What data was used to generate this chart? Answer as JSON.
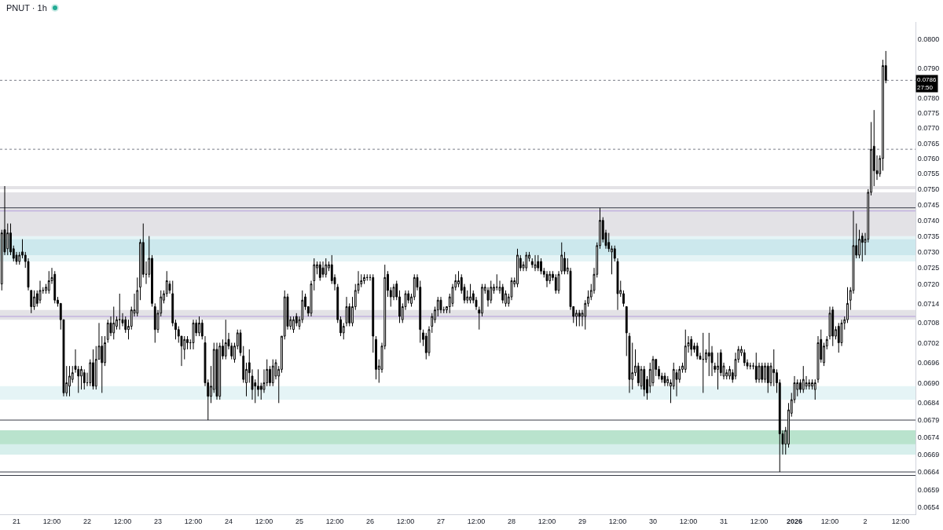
{
  "chart_data": {
    "type": "candlestick",
    "title": "PNUT · 1h",
    "color": "#000000",
    "log": true,
    "xlim": [
      "2025-12-20T18:24",
      "2026-01-02T17:04"
    ],
    "xticks": [
      {
        "value": "2025-12-21",
        "label": "21"
      },
      {
        "value": "2025-12-21T12:00",
        "label": "12:00"
      },
      {
        "value": "2025-12-22",
        "label": "22"
      },
      {
        "value": "2025-12-22T12:00",
        "label": "12:00"
      },
      {
        "value": "2025-12-23",
        "label": "23"
      },
      {
        "value": "2025-12-23T12:00",
        "label": "12:00"
      },
      {
        "value": "2025-12-24",
        "label": "24"
      },
      {
        "value": "2025-12-24T12:00",
        "label": "12:00"
      },
      {
        "value": "2025-12-25",
        "label": "25"
      },
      {
        "value": "2025-12-25T12:00",
        "label": "12:00"
      },
      {
        "value": "2025-12-26",
        "label": "26"
      },
      {
        "value": "2025-12-26T12:00",
        "label": "12:00"
      },
      {
        "value": "2025-12-27",
        "label": "27"
      },
      {
        "value": "2025-12-27T12:00",
        "label": "12:00"
      },
      {
        "value": "2025-12-28",
        "label": "28"
      },
      {
        "value": "2025-12-28T12:00",
        "label": "12:00"
      },
      {
        "value": "2025-12-29",
        "label": "29"
      },
      {
        "value": "2025-12-29T12:00",
        "label": "12:00"
      },
      {
        "value": "2025-12-30",
        "label": "30"
      },
      {
        "value": "2025-12-30T12:00",
        "label": "12:00"
      },
      {
        "value": "2025-12-31",
        "label": "31"
      },
      {
        "value": "2025-12-31T12:00",
        "label": "12:00"
      },
      {
        "value": "2026-01-01",
        "label": "2026"
      },
      {
        "value": "2026-01-01T12:00",
        "label": "12:00"
      },
      {
        "value": "2026-01-02",
        "label": "2"
      },
      {
        "value": "2026-01-02T12:00",
        "label": "12:00"
      }
    ],
    "ylim": [
      0.0652,
      0.0806
    ],
    "yticks": [
      {
        "value": 0.08,
        "label": "0.0800"
      },
      {
        "value": 0.079,
        "label": "0.0790"
      },
      {
        "value": 0.078,
        "label": "0.0780"
      },
      0.0775,
      {
        "value": 0.077,
        "label": "0.0770"
      },
      0.0765,
      {
        "value": 0.076,
        "label": "0.0760"
      },
      0.0755,
      {
        "value": 0.075,
        "label": "0.0750"
      },
      0.0745,
      {
        "value": 0.074,
        "label": "0.0740"
      },
      0.0735,
      {
        "value": 0.073,
        "label": "0.0730"
      },
      0.0725,
      {
        "value": 0.072,
        "label": "0.0720"
      },
      0.0714,
      0.0708,
      0.0702,
      0.0696,
      {
        "value": 0.069,
        "label": "0.0690"
      },
      0.0684,
      0.0679,
      0.0674,
      0.0669,
      0.0664,
      0.0659,
      0.0654
    ],
    "bands": [
      {
        "axis": "y",
        "from": 0.0727,
        "to": 0.0735,
        "color": "#dff1f4"
      },
      {
        "axis": "y",
        "from": 0.0729,
        "to": 0.0734,
        "color": "#c5e5eb"
      },
      {
        "axis": "y",
        "from": 0.0685,
        "to": 0.0689,
        "color": "#dff1f4"
      },
      {
        "axis": "y",
        "from": 0.0669,
        "to": 0.0676,
        "color": "#a8dcc0"
      },
      {
        "axis": "y",
        "from": 0.0669,
        "to": 0.0672,
        "color": "#dff1f4"
      },
      {
        "axis": "y",
        "from": 0.0735,
        "to": 0.0749,
        "color": "#dcdbe0"
      },
      {
        "axis": "y",
        "from": 0.075,
        "to": 0.0751,
        "color": "#dcdbe0"
      },
      {
        "axis": "y",
        "from": 0.0709,
        "to": 0.0712,
        "color": "#dcdbe0"
      }
    ],
    "ref_lines": [
      {
        "axis": "y",
        "value": 0.0786,
        "label": "0.0786\n27:50",
        "line_style": "dotted",
        "color": "#787b86"
      },
      {
        "axis": "y",
        "value": 0.0763,
        "line_style": "dotted",
        "color": "#787b86"
      },
      {
        "axis": "y",
        "value": 0.0744,
        "color": "#363a45"
      },
      {
        "axis": "y",
        "value": 0.0743,
        "color": "#b39ddb"
      },
      {
        "axis": "y",
        "value": 0.071,
        "color": "#b39ddb"
      },
      {
        "axis": "y",
        "value": 0.0679,
        "color": "#363a45"
      },
      {
        "axis": "y",
        "value": 0.0664,
        "color": "#363a45"
      },
      {
        "axis": "y",
        "value": 0.0663,
        "color": "#363a45"
      }
    ],
    "x": [
      "2025-12-20T19:00",
      "2025-12-20T20:00",
      "2025-12-20T21:00",
      "2025-12-20T22:00",
      "2025-12-20T23:00",
      "2025-12-21T00:00",
      "2025-12-21T01:00",
      "2025-12-21T02:00",
      "2025-12-21T03:00",
      "2025-12-21T04:00",
      "2025-12-21T05:00",
      "2025-12-21T06:00",
      "2025-12-21T07:00",
      "2025-12-21T08:00",
      "2025-12-21T09:00",
      "2025-12-21T10:00",
      "2025-12-21T11:00",
      "2025-12-21T12:00",
      "2025-12-21T13:00",
      "2025-12-21T14:00",
      "2025-12-21T15:00",
      "2025-12-21T16:00",
      "2025-12-21T17:00",
      "2025-12-21T18:00",
      "2025-12-21T19:00",
      "2025-12-21T20:00",
      "2025-12-21T21:00",
      "2025-12-21T22:00",
      "2025-12-21T23:00",
      "2025-12-22T00:00",
      "2025-12-22T01:00",
      "2025-12-22T02:00",
      "2025-12-22T03:00",
      "2025-12-22T04:00",
      "2025-12-22T05:00",
      "2025-12-22T06:00",
      "2025-12-22T07:00",
      "2025-12-22T08:00",
      "2025-12-22T09:00",
      "2025-12-22T10:00",
      "2025-12-22T11:00",
      "2025-12-22T12:00",
      "2025-12-22T13:00",
      "2025-12-22T14:00",
      "2025-12-22T15:00",
      "2025-12-22T16:00",
      "2025-12-22T17:00",
      "2025-12-22T18:00",
      "2025-12-22T19:00",
      "2025-12-22T20:00",
      "2025-12-22T21:00",
      "2025-12-22T22:00",
      "2025-12-22T23:00",
      "2025-12-23T00:00",
      "2025-12-23T01:00",
      "2025-12-23T02:00",
      "2025-12-23T03:00",
      "2025-12-23T04:00",
      "2025-12-23T05:00",
      "2025-12-23T06:00",
      "2025-12-23T07:00",
      "2025-12-23T08:00",
      "2025-12-23T09:00",
      "2025-12-23T10:00",
      "2025-12-23T11:00",
      "2025-12-23T12:00",
      "2025-12-23T13:00",
      "2025-12-23T14:00",
      "2025-12-23T15:00",
      "2025-12-23T16:00",
      "2025-12-23T17:00",
      "2025-12-23T18:00",
      "2025-12-23T19:00",
      "2025-12-23T20:00",
      "2025-12-23T21:00",
      "2025-12-23T22:00",
      "2025-12-23T23:00",
      "2025-12-24T00:00",
      "2025-12-24T01:00",
      "2025-12-24T02:00",
      "2025-12-24T03:00",
      "2025-12-24T04:00",
      "2025-12-24T05:00",
      "2025-12-24T06:00",
      "2025-12-24T07:00",
      "2025-12-24T08:00",
      "2025-12-24T09:00",
      "2025-12-24T10:00",
      "2025-12-24T11:00",
      "2025-12-24T12:00",
      "2025-12-24T13:00",
      "2025-12-24T14:00",
      "2025-12-24T15:00",
      "2025-12-24T16:00",
      "2025-12-24T17:00",
      "2025-12-24T18:00",
      "2025-12-24T19:00",
      "2025-12-24T20:00",
      "2025-12-24T21:00",
      "2025-12-24T22:00",
      "2025-12-24T23:00",
      "2025-12-25T00:00",
      "2025-12-25T01:00",
      "2025-12-25T02:00",
      "2025-12-25T03:00",
      "2025-12-25T04:00",
      "2025-12-25T05:00",
      "2025-12-25T06:00",
      "2025-12-25T07:00",
      "2025-12-25T08:00",
      "2025-12-25T09:00",
      "2025-12-25T10:00",
      "2025-12-25T11:00",
      "2025-12-25T12:00",
      "2025-12-25T13:00",
      "2025-12-25T14:00",
      "2025-12-25T15:00",
      "2025-12-25T16:00",
      "2025-12-25T17:00",
      "2025-12-25T18:00",
      "2025-12-25T19:00",
      "2025-12-25T20:00",
      "2025-12-25T21:00",
      "2025-12-25T22:00",
      "2025-12-25T23:00",
      "2025-12-26T00:00",
      "2025-12-26T01:00",
      "2025-12-26T02:00",
      "2025-12-26T03:00",
      "2025-12-26T04:00",
      "2025-12-26T05:00",
      "2025-12-26T06:00",
      "2025-12-26T07:00",
      "2025-12-26T08:00",
      "2025-12-26T09:00",
      "2025-12-26T10:00",
      "2025-12-26T11:00",
      "2025-12-26T12:00",
      "2025-12-26T13:00",
      "2025-12-26T14:00",
      "2025-12-26T15:00",
      "2025-12-26T16:00",
      "2025-12-26T17:00",
      "2025-12-26T18:00",
      "2025-12-26T19:00",
      "2025-12-26T20:00",
      "2025-12-26T21:00",
      "2025-12-26T22:00",
      "2025-12-26T23:00",
      "2025-12-27T00:00",
      "2025-12-27T01:00",
      "2025-12-27T02:00",
      "2025-12-27T03:00",
      "2025-12-27T04:00",
      "2025-12-27T05:00",
      "2025-12-27T06:00",
      "2025-12-27T07:00",
      "2025-12-27T08:00",
      "2025-12-27T09:00",
      "2025-12-27T10:00",
      "2025-12-27T11:00",
      "2025-12-27T12:00",
      "2025-12-27T13:00",
      "2025-12-27T14:00",
      "2025-12-27T15:00",
      "2025-12-27T16:00",
      "2025-12-27T17:00",
      "2025-12-27T18:00",
      "2025-12-27T19:00",
      "2025-12-27T20:00",
      "2025-12-27T21:00",
      "2025-12-27T22:00",
      "2025-12-27T23:00",
      "2025-12-28T00:00",
      "2025-12-28T01:00",
      "2025-12-28T02:00",
      "2025-12-28T03:00",
      "2025-12-28T04:00",
      "2025-12-28T05:00",
      "2025-12-28T06:00",
      "2025-12-28T07:00",
      "2025-12-28T08:00",
      "2025-12-28T09:00",
      "2025-12-28T10:00",
      "2025-12-28T11:00",
      "2025-12-28T12:00",
      "2025-12-28T13:00",
      "2025-12-28T14:00",
      "2025-12-28T15:00",
      "2025-12-28T16:00",
      "2025-12-28T17:00",
      "2025-12-28T18:00",
      "2025-12-28T19:00",
      "2025-12-28T20:00",
      "2025-12-28T21:00",
      "2025-12-28T22:00",
      "2025-12-28T23:00",
      "2025-12-29T00:00",
      "2025-12-29T01:00",
      "2025-12-29T02:00",
      "2025-12-29T03:00",
      "2025-12-29T04:00",
      "2025-12-29T05:00",
      "2025-12-29T06:00",
      "2025-12-29T07:00",
      "2025-12-29T08:00",
      "2025-12-29T09:00",
      "2025-12-29T10:00",
      "2025-12-29T11:00",
      "2025-12-29T12:00",
      "2025-12-29T13:00",
      "2025-12-29T14:00",
      "2025-12-29T15:00",
      "2025-12-29T16:00",
      "2025-12-29T17:00",
      "2025-12-29T18:00",
      "2025-12-29T19:00",
      "2025-12-29T20:00",
      "2025-12-29T21:00",
      "2025-12-29T22:00",
      "2025-12-29T23:00",
      "2025-12-30T00:00",
      "2025-12-30T01:00",
      "2025-12-30T02:00",
      "2025-12-30T03:00",
      "2025-12-30T04:00",
      "2025-12-30T05:00",
      "2025-12-30T06:00",
      "2025-12-30T07:00",
      "2025-12-30T08:00",
      "2025-12-30T09:00",
      "2025-12-30T10:00",
      "2025-12-30T11:00",
      "2025-12-30T12:00",
      "2025-12-30T13:00",
      "2025-12-30T14:00",
      "2025-12-30T15:00",
      "2025-12-30T16:00",
      "2025-12-30T17:00",
      "2025-12-30T18:00",
      "2025-12-30T19:00",
      "2025-12-30T20:00",
      "2025-12-30T21:00",
      "2025-12-30T22:00",
      "2025-12-30T23:00",
      "2025-12-31T00:00",
      "2025-12-31T01:00",
      "2025-12-31T02:00",
      "2025-12-31T03:00",
      "2025-12-31T04:00",
      "2025-12-31T05:00",
      "2025-12-31T06:00",
      "2025-12-31T07:00",
      "2025-12-31T08:00",
      "2025-12-31T09:00",
      "2025-12-31T10:00",
      "2025-12-31T11:00",
      "2025-12-31T12:00",
      "2025-12-31T13:00",
      "2025-12-31T14:00",
      "2025-12-31T15:00",
      "2025-12-31T16:00",
      "2025-12-31T17:00",
      "2025-12-31T18:00",
      "2025-12-31T19:00",
      "2025-12-31T20:00",
      "2025-12-31T21:00",
      "2025-12-31T22:00",
      "2025-12-31T23:00",
      "2026-01-01T00:00",
      "2026-01-01T01:00",
      "2026-01-01T02:00",
      "2026-01-01T03:00",
      "2026-01-01T04:00",
      "2026-01-01T05:00",
      "2026-01-01T06:00",
      "2026-01-01T07:00",
      "2026-01-01T08:00",
      "2026-01-01T09:00",
      "2026-01-01T10:00",
      "2026-01-01T11:00",
      "2026-01-01T12:00",
      "2026-01-01T13:00",
      "2026-01-01T14:00",
      "2026-01-01T15:00",
      "2026-01-01T16:00",
      "2026-01-01T17:00",
      "2026-01-01T18:00",
      "2026-01-01T19:00",
      "2026-01-01T20:00",
      "2026-01-01T21:00",
      "2026-01-01T22:00",
      "2026-01-01T23:00",
      "2026-01-02T00:00",
      "2026-01-02T01:00",
      "2026-01-02T02:00",
      "2026-01-02T03:00",
      "2026-01-02T04:00",
      "2026-01-02T05:00",
      "2026-01-02T06:00",
      "2026-01-02T07:00"
    ],
    "ohlc": [
      [
        0.072,
        0.0737,
        0.0718,
        0.0736
      ],
      [
        0.0737,
        0.0751,
        0.0729,
        0.073
      ],
      [
        0.0731,
        0.0739,
        0.0729,
        0.0736
      ],
      [
        0.0736,
        0.0739,
        0.0729,
        0.073
      ],
      [
        0.0731,
        0.0732,
        0.0727,
        0.0728
      ],
      [
        0.0729,
        0.073,
        0.0726,
        0.0727
      ],
      [
        0.0727,
        0.073,
        0.0726,
        0.0729
      ],
      [
        0.073,
        0.0734,
        0.0728,
        0.0729
      ],
      [
        0.0729,
        0.073,
        0.0725,
        0.0727
      ],
      [
        0.0727,
        0.0728,
        0.0718,
        0.0719
      ],
      [
        0.0718,
        0.0718,
        0.0711,
        0.0713
      ],
      [
        0.0713,
        0.0718,
        0.0712,
        0.0716
      ],
      [
        0.0717,
        0.0718,
        0.0713,
        0.0714
      ],
      [
        0.0715,
        0.0721,
        0.0714,
        0.0718
      ],
      [
        0.0718,
        0.0719,
        0.0717,
        0.0718
      ],
      [
        0.0718,
        0.072,
        0.0717,
        0.0719
      ],
      [
        0.0718,
        0.0724,
        0.0717,
        0.0721
      ],
      [
        0.0721,
        0.0725,
        0.072,
        0.0722
      ],
      [
        0.0723,
        0.0724,
        0.0714,
        0.0715
      ],
      [
        0.0715,
        0.0716,
        0.0713,
        0.0714
      ],
      [
        0.0714,
        0.0714,
        0.0706,
        0.0709
      ],
      [
        0.0709,
        0.0709,
        0.0686,
        0.0687
      ],
      [
        0.0687,
        0.0695,
        0.0686,
        0.069
      ],
      [
        0.0689,
        0.0695,
        0.0686,
        0.0692
      ],
      [
        0.0691,
        0.0695,
        0.069,
        0.0693
      ],
      [
        0.0695,
        0.07,
        0.0693,
        0.0694
      ],
      [
        0.0694,
        0.0695,
        0.0687,
        0.0692
      ],
      [
        0.0692,
        0.0695,
        0.0688,
        0.0694
      ],
      [
        0.0693,
        0.0694,
        0.0688,
        0.069
      ],
      [
        0.069,
        0.0693,
        0.0689,
        0.069
      ],
      [
        0.069,
        0.0697,
        0.0689,
        0.0696
      ],
      [
        0.0696,
        0.07,
        0.0688,
        0.0689
      ],
      [
        0.0689,
        0.0701,
        0.0688,
        0.0697
      ],
      [
        0.0697,
        0.0708,
        0.0697,
        0.0701
      ],
      [
        0.0701,
        0.0704,
        0.0687,
        0.0696
      ],
      [
        0.0696,
        0.0704,
        0.0695,
        0.0702
      ],
      [
        0.0703,
        0.0709,
        0.0702,
        0.0708
      ],
      [
        0.0708,
        0.071,
        0.0704,
        0.0705
      ],
      [
        0.0705,
        0.0713,
        0.0703,
        0.0708
      ],
      [
        0.0707,
        0.071,
        0.0706,
        0.0709
      ],
      [
        0.0709,
        0.0717,
        0.0706,
        0.0709
      ],
      [
        0.0709,
        0.0711,
        0.0707,
        0.0708
      ],
      [
        0.0709,
        0.071,
        0.0705,
        0.0706
      ],
      [
        0.0706,
        0.0709,
        0.0703,
        0.0707
      ],
      [
        0.0707,
        0.0713,
        0.0706,
        0.0712
      ],
      [
        0.0711,
        0.0717,
        0.071,
        0.0712
      ],
      [
        0.0711,
        0.0722,
        0.071,
        0.0718
      ],
      [
        0.0719,
        0.0734,
        0.0715,
        0.0733
      ],
      [
        0.0733,
        0.0739,
        0.0722,
        0.0723
      ],
      [
        0.0723,
        0.0727,
        0.072,
        0.0723
      ],
      [
        0.0723,
        0.0735,
        0.0722,
        0.0728
      ],
      [
        0.0728,
        0.0729,
        0.0713,
        0.0714
      ],
      [
        0.0713,
        0.0714,
        0.0702,
        0.0706
      ],
      [
        0.0706,
        0.0712,
        0.0705,
        0.0711
      ],
      [
        0.0711,
        0.0718,
        0.071,
        0.0716
      ],
      [
        0.0715,
        0.0718,
        0.0714,
        0.0717
      ],
      [
        0.0717,
        0.0724,
        0.0716,
        0.0721
      ],
      [
        0.072,
        0.0721,
        0.0717,
        0.0718
      ],
      [
        0.0717,
        0.0721,
        0.0707,
        0.0708
      ],
      [
        0.0708,
        0.0709,
        0.0703,
        0.0706
      ],
      [
        0.0706,
        0.0707,
        0.0702,
        0.0704
      ],
      [
        0.0704,
        0.0704,
        0.0695,
        0.0701
      ],
      [
        0.07,
        0.0704,
        0.0697,
        0.0703
      ],
      [
        0.0703,
        0.0704,
        0.07,
        0.0702
      ],
      [
        0.0702,
        0.0703,
        0.07,
        0.0702
      ],
      [
        0.0702,
        0.0709,
        0.07,
        0.0708
      ],
      [
        0.0708,
        0.0709,
        0.0704,
        0.0705
      ],
      [
        0.0705,
        0.071,
        0.0704,
        0.0708
      ],
      [
        0.0708,
        0.0709,
        0.0703,
        0.0704
      ],
      [
        0.0702,
        0.0704,
        0.0689,
        0.069
      ],
      [
        0.069,
        0.0691,
        0.0679,
        0.0686
      ],
      [
        0.0686,
        0.0695,
        0.0684,
        0.0689
      ],
      [
        0.0688,
        0.0702,
        0.0687,
        0.07
      ],
      [
        0.07,
        0.0702,
        0.0685,
        0.0686
      ],
      [
        0.0686,
        0.0702,
        0.0685,
        0.0701
      ],
      [
        0.0701,
        0.0703,
        0.0697,
        0.0698
      ],
      [
        0.0698,
        0.0709,
        0.0697,
        0.0702
      ],
      [
        0.0703,
        0.0705,
        0.07,
        0.0701
      ],
      [
        0.0701,
        0.0702,
        0.0697,
        0.0698
      ],
      [
        0.0697,
        0.0702,
        0.0696,
        0.0701
      ],
      [
        0.0701,
        0.0706,
        0.07,
        0.0705
      ],
      [
        0.0705,
        0.0706,
        0.0698,
        0.0699
      ],
      [
        0.0698,
        0.0701,
        0.069,
        0.0691
      ],
      [
        0.069,
        0.0696,
        0.0686,
        0.0694
      ],
      [
        0.0696,
        0.07,
        0.069,
        0.0693
      ],
      [
        0.0692,
        0.0694,
        0.0685,
        0.0688
      ],
      [
        0.069,
        0.0691,
        0.0684,
        0.0689
      ],
      [
        0.0689,
        0.0694,
        0.0686,
        0.0688
      ],
      [
        0.0689,
        0.069,
        0.0685,
        0.0688
      ],
      [
        0.0688,
        0.0694,
        0.0687,
        0.069
      ],
      [
        0.069,
        0.0697,
        0.0689,
        0.0694
      ],
      [
        0.0694,
        0.0695,
        0.0689,
        0.069
      ],
      [
        0.069,
        0.0697,
        0.0689,
        0.0695
      ],
      [
        0.0692,
        0.0697,
        0.0691,
        0.0696
      ],
      [
        0.0692,
        0.0695,
        0.0684,
        0.0694
      ],
      [
        0.0694,
        0.0704,
        0.0693,
        0.0704
      ],
      [
        0.0704,
        0.0718,
        0.0703,
        0.0716
      ],
      [
        0.0716,
        0.0717,
        0.0706,
        0.0707
      ],
      [
        0.0707,
        0.071,
        0.0706,
        0.0709
      ],
      [
        0.0706,
        0.071,
        0.0705,
        0.0709
      ],
      [
        0.071,
        0.0711,
        0.0707,
        0.0708
      ],
      [
        0.0707,
        0.071,
        0.0706,
        0.0709
      ],
      [
        0.0709,
        0.0718,
        0.0708,
        0.0715
      ],
      [
        0.0716,
        0.0717,
        0.0712,
        0.0713
      ],
      [
        0.0713,
        0.0713,
        0.071,
        0.0711
      ],
      [
        0.0711,
        0.0721,
        0.071,
        0.072
      ],
      [
        0.0721,
        0.0728,
        0.0718,
        0.0726
      ],
      [
        0.0725,
        0.0727,
        0.0723,
        0.0726
      ],
      [
        0.0726,
        0.0727,
        0.0721,
        0.0722
      ],
      [
        0.0725,
        0.0727,
        0.0722,
        0.0723
      ],
      [
        0.0723,
        0.0728,
        0.0722,
        0.0726
      ],
      [
        0.0725,
        0.0727,
        0.0724,
        0.0726
      ],
      [
        0.0726,
        0.0729,
        0.072,
        0.0721
      ],
      [
        0.0722,
        0.0723,
        0.0718,
        0.072
      ],
      [
        0.0719,
        0.072,
        0.0708,
        0.0709
      ],
      [
        0.0709,
        0.071,
        0.0704,
        0.0705
      ],
      [
        0.0705,
        0.0708,
        0.0703,
        0.0707
      ],
      [
        0.0708,
        0.0716,
        0.0707,
        0.0713
      ],
      [
        0.0713,
        0.0714,
        0.0707,
        0.0708
      ],
      [
        0.0708,
        0.0716,
        0.0707,
        0.0713
      ],
      [
        0.0713,
        0.072,
        0.0712,
        0.0718
      ],
      [
        0.0718,
        0.0724,
        0.0717,
        0.072
      ],
      [
        0.072,
        0.0723,
        0.0719,
        0.0721
      ],
      [
        0.0721,
        0.0723,
        0.072,
        0.0722
      ],
      [
        0.0722,
        0.0723,
        0.0721,
        0.0722
      ],
      [
        0.0722,
        0.0723,
        0.0721,
        0.0722
      ],
      [
        0.0722,
        0.0723,
        0.0699,
        0.0704
      ],
      [
        0.0703,
        0.0704,
        0.0691,
        0.0694
      ],
      [
        0.0694,
        0.0697,
        0.069,
        0.0695
      ],
      [
        0.0694,
        0.0702,
        0.0693,
        0.0701
      ],
      [
        0.0701,
        0.0726,
        0.07,
        0.0722
      ],
      [
        0.0723,
        0.0724,
        0.0716,
        0.0718
      ],
      [
        0.0718,
        0.0719,
        0.0713,
        0.0716
      ],
      [
        0.0716,
        0.072,
        0.0715,
        0.0719
      ],
      [
        0.072,
        0.0721,
        0.0715,
        0.0716
      ],
      [
        0.0716,
        0.0718,
        0.0708,
        0.071
      ],
      [
        0.0709,
        0.0714,
        0.0708,
        0.0713
      ],
      [
        0.0713,
        0.0718,
        0.0712,
        0.0717
      ],
      [
        0.0717,
        0.0718,
        0.0714,
        0.0715
      ],
      [
        0.0714,
        0.0717,
        0.0713,
        0.0716
      ],
      [
        0.0716,
        0.0723,
        0.0715,
        0.0722
      ],
      [
        0.0722,
        0.0723,
        0.0718,
        0.0719
      ],
      [
        0.0719,
        0.0721,
        0.0702,
        0.0706
      ],
      [
        0.0705,
        0.0706,
        0.0701,
        0.0703
      ],
      [
        0.0704,
        0.0705,
        0.0697,
        0.0699
      ],
      [
        0.0699,
        0.0707,
        0.0698,
        0.0706
      ],
      [
        0.0707,
        0.0711,
        0.0705,
        0.071
      ],
      [
        0.0709,
        0.0713,
        0.0708,
        0.0712
      ],
      [
        0.0712,
        0.0716,
        0.071,
        0.0715
      ],
      [
        0.0715,
        0.0716,
        0.0711,
        0.0712
      ],
      [
        0.0712,
        0.0713,
        0.0711,
        0.0712
      ],
      [
        0.0712,
        0.0713,
        0.0711,
        0.0713
      ],
      [
        0.0713,
        0.0717,
        0.0711,
        0.0716
      ],
      [
        0.0714,
        0.072,
        0.0713,
        0.0719
      ],
      [
        0.0719,
        0.0723,
        0.0718,
        0.0721
      ],
      [
        0.072,
        0.0724,
        0.0719,
        0.0721
      ],
      [
        0.0722,
        0.0723,
        0.0717,
        0.0718
      ],
      [
        0.0719,
        0.072,
        0.0714,
        0.0715
      ],
      [
        0.0715,
        0.0718,
        0.0714,
        0.0716
      ],
      [
        0.0715,
        0.072,
        0.0714,
        0.0716
      ],
      [
        0.0717,
        0.0718,
        0.0714,
        0.0715
      ],
      [
        0.0715,
        0.0716,
        0.0712,
        0.0713
      ],
      [
        0.0712,
        0.0713,
        0.0706,
        0.0711
      ],
      [
        0.0711,
        0.072,
        0.071,
        0.0719
      ],
      [
        0.0718,
        0.072,
        0.0717,
        0.0719
      ],
      [
        0.0718,
        0.0719,
        0.0713,
        0.0715
      ],
      [
        0.0715,
        0.0721,
        0.0714,
        0.0719
      ],
      [
        0.0718,
        0.072,
        0.0717,
        0.0719
      ],
      [
        0.0719,
        0.0723,
        0.0718,
        0.0719
      ],
      [
        0.0718,
        0.0721,
        0.0717,
        0.0719
      ],
      [
        0.0719,
        0.072,
        0.0714,
        0.0715
      ],
      [
        0.0714,
        0.0718,
        0.0713,
        0.0717
      ],
      [
        0.0714,
        0.0717,
        0.0713,
        0.0716
      ],
      [
        0.0716,
        0.0722,
        0.0715,
        0.0721
      ],
      [
        0.072,
        0.0722,
        0.0719,
        0.0721
      ],
      [
        0.072,
        0.0731,
        0.0719,
        0.0729
      ],
      [
        0.0728,
        0.0729,
        0.0724,
        0.0725
      ],
      [
        0.0725,
        0.0727,
        0.0724,
        0.0726
      ],
      [
        0.0725,
        0.073,
        0.0724,
        0.0729
      ],
      [
        0.0728,
        0.073,
        0.0727,
        0.0729
      ],
      [
        0.0727,
        0.0728,
        0.0725,
        0.0726
      ],
      [
        0.0725,
        0.0729,
        0.0724,
        0.0726
      ],
      [
        0.0727,
        0.0729,
        0.0724,
        0.0725
      ],
      [
        0.0727,
        0.0728,
        0.0723,
        0.0724
      ],
      [
        0.0724,
        0.0725,
        0.0722,
        0.0723
      ],
      [
        0.0723,
        0.0724,
        0.0719,
        0.0721
      ],
      [
        0.0721,
        0.0724,
        0.072,
        0.0723
      ],
      [
        0.0723,
        0.0724,
        0.0721,
        0.0722
      ],
      [
        0.0722,
        0.0723,
        0.0717,
        0.0718
      ],
      [
        0.0718,
        0.0724,
        0.0717,
        0.0723
      ],
      [
        0.0724,
        0.0733,
        0.0723,
        0.0729
      ],
      [
        0.0728,
        0.073,
        0.0723,
        0.0724
      ],
      [
        0.0724,
        0.0728,
        0.0723,
        0.0725
      ],
      [
        0.0724,
        0.0725,
        0.0712,
        0.0713
      ],
      [
        0.0713,
        0.0713,
        0.0708,
        0.071
      ],
      [
        0.071,
        0.0712,
        0.0707,
        0.0711
      ],
      [
        0.0711,
        0.0712,
        0.0707,
        0.071
      ],
      [
        0.071,
        0.0712,
        0.0707,
        0.0711
      ],
      [
        0.071,
        0.0715,
        0.0706,
        0.0714
      ],
      [
        0.0714,
        0.0718,
        0.0713,
        0.0716
      ],
      [
        0.0716,
        0.072,
        0.0715,
        0.0718
      ],
      [
        0.0718,
        0.0725,
        0.0717,
        0.0723
      ],
      [
        0.0723,
        0.0733,
        0.0722,
        0.0732
      ],
      [
        0.0732,
        0.0744,
        0.0731,
        0.074
      ],
      [
        0.074,
        0.0741,
        0.0733,
        0.0734
      ],
      [
        0.0736,
        0.0737,
        0.0731,
        0.0732
      ],
      [
        0.0733,
        0.0736,
        0.073,
        0.0731
      ],
      [
        0.073,
        0.0732,
        0.0723,
        0.0731
      ],
      [
        0.0731,
        0.0732,
        0.0727,
        0.0728
      ],
      [
        0.0727,
        0.0728,
        0.0712,
        0.0717
      ],
      [
        0.0717,
        0.0721,
        0.0716,
        0.0718
      ],
      [
        0.0717,
        0.0718,
        0.0713,
        0.0714
      ],
      [
        0.0713,
        0.0713,
        0.0698,
        0.0705
      ],
      [
        0.0704,
        0.0705,
        0.0687,
        0.0691
      ],
      [
        0.0691,
        0.0702,
        0.0688,
        0.0693
      ],
      [
        0.0693,
        0.07,
        0.0692,
        0.0695
      ],
      [
        0.0695,
        0.0696,
        0.0689,
        0.069
      ],
      [
        0.0689,
        0.0695,
        0.0688,
        0.0694
      ],
      [
        0.0694,
        0.0695,
        0.0686,
        0.0688
      ],
      [
        0.0691,
        0.0692,
        0.0685,
        0.0687
      ],
      [
        0.0689,
        0.0696,
        0.0687,
        0.0694
      ],
      [
        0.069,
        0.0698,
        0.0689,
        0.0697
      ],
      [
        0.0697,
        0.0697,
        0.0692,
        0.0694
      ],
      [
        0.0694,
        0.0695,
        0.0691,
        0.0692
      ],
      [
        0.0692,
        0.0693,
        0.069,
        0.0691
      ],
      [
        0.0692,
        0.0693,
        0.0689,
        0.069
      ],
      [
        0.069,
        0.0692,
        0.0689,
        0.0691
      ],
      [
        0.0689,
        0.0691,
        0.0684,
        0.069
      ],
      [
        0.0689,
        0.0696,
        0.0688,
        0.0694
      ],
      [
        0.0693,
        0.0694,
        0.0686,
        0.0691
      ],
      [
        0.0691,
        0.0695,
        0.069,
        0.0694
      ],
      [
        0.0694,
        0.0696,
        0.0693,
        0.0695
      ],
      [
        0.0694,
        0.0706,
        0.0693,
        0.0701
      ],
      [
        0.0701,
        0.0704,
        0.0699,
        0.0702
      ],
      [
        0.0703,
        0.0704,
        0.0698,
        0.07
      ],
      [
        0.0701,
        0.0702,
        0.0699,
        0.07
      ],
      [
        0.0701,
        0.0702,
        0.0697,
        0.0698
      ],
      [
        0.0698,
        0.0699,
        0.0697,
        0.0697
      ],
      [
        0.0697,
        0.0705,
        0.0687,
        0.0697
      ],
      [
        0.0697,
        0.07,
        0.0696,
        0.0699
      ],
      [
        0.0699,
        0.0705,
        0.0692,
        0.0698
      ],
      [
        0.0699,
        0.0701,
        0.0692,
        0.0696
      ],
      [
        0.0695,
        0.0696,
        0.0693,
        0.0694
      ],
      [
        0.0694,
        0.0699,
        0.0688,
        0.0695
      ],
      [
        0.0699,
        0.07,
        0.0692,
        0.0693
      ],
      [
        0.0692,
        0.0696,
        0.0691,
        0.0695
      ],
      [
        0.0692,
        0.0694,
        0.0691,
        0.0693
      ],
      [
        0.0692,
        0.0695,
        0.0691,
        0.0694
      ],
      [
        0.0693,
        0.0694,
        0.069,
        0.0691
      ],
      [
        0.0692,
        0.0699,
        0.0691,
        0.0697
      ],
      [
        0.0697,
        0.0701,
        0.0696,
        0.07
      ],
      [
        0.0699,
        0.0701,
        0.0698,
        0.07
      ],
      [
        0.0699,
        0.07,
        0.0695,
        0.0696
      ],
      [
        0.0696,
        0.0697,
        0.0694,
        0.0695
      ],
      [
        0.0695,
        0.0696,
        0.0694,
        0.0695
      ],
      [
        0.0695,
        0.0696,
        0.0694,
        0.0695
      ],
      [
        0.0695,
        0.0699,
        0.069,
        0.0691
      ],
      [
        0.0691,
        0.0696,
        0.069,
        0.0695
      ],
      [
        0.0695,
        0.0696,
        0.069,
        0.0691
      ],
      [
        0.0691,
        0.0696,
        0.069,
        0.0695
      ],
      [
        0.0695,
        0.0696,
        0.0687,
        0.069
      ],
      [
        0.069,
        0.0696,
        0.0689,
        0.0695
      ],
      [
        0.0694,
        0.07,
        0.0689,
        0.0693
      ],
      [
        0.0693,
        0.0694,
        0.0687,
        0.069
      ],
      [
        0.069,
        0.0691,
        0.0664,
        0.0675
      ],
      [
        0.0675,
        0.0676,
        0.0669,
        0.0672
      ],
      [
        0.0672,
        0.0677,
        0.0669,
        0.0676
      ],
      [
        0.0672,
        0.0684,
        0.0671,
        0.0682
      ],
      [
        0.0681,
        0.0687,
        0.068,
        0.0685
      ],
      [
        0.0685,
        0.0692,
        0.0684,
        0.069
      ],
      [
        0.0688,
        0.0691,
        0.0686,
        0.069
      ],
      [
        0.069,
        0.0691,
        0.0687,
        0.0688
      ],
      [
        0.0688,
        0.0695,
        0.0687,
        0.0691
      ],
      [
        0.0689,
        0.0692,
        0.0688,
        0.069
      ],
      [
        0.0689,
        0.0691,
        0.0688,
        0.069
      ],
      [
        0.0689,
        0.0691,
        0.0688,
        0.069
      ],
      [
        0.0688,
        0.0691,
        0.0685,
        0.069
      ],
      [
        0.0691,
        0.0704,
        0.069,
        0.0702
      ],
      [
        0.0703,
        0.0706,
        0.0696,
        0.0697
      ],
      [
        0.0696,
        0.0702,
        0.0695,
        0.0701
      ],
      [
        0.0701,
        0.0704,
        0.07,
        0.0703
      ],
      [
        0.0704,
        0.0713,
        0.0703,
        0.0711
      ],
      [
        0.0712,
        0.0713,
        0.0701,
        0.0704
      ],
      [
        0.0704,
        0.0707,
        0.0703,
        0.0706
      ],
      [
        0.0707,
        0.0708,
        0.0699,
        0.0702
      ],
      [
        0.0702,
        0.0709,
        0.0701,
        0.0708
      ],
      [
        0.0708,
        0.071,
        0.0706,
        0.0709
      ],
      [
        0.0709,
        0.0719,
        0.0708,
        0.0714
      ],
      [
        0.0715,
        0.0719,
        0.0712,
        0.0718
      ],
      [
        0.0718,
        0.0743,
        0.0717,
        0.0732
      ],
      [
        0.0732,
        0.0739,
        0.0728,
        0.0729
      ],
      [
        0.0729,
        0.0737,
        0.0728,
        0.0734
      ],
      [
        0.0735,
        0.0736,
        0.0727,
        0.0733
      ],
      [
        0.0733,
        0.0736,
        0.0729,
        0.0734
      ],
      [
        0.0734,
        0.075,
        0.0733,
        0.0749
      ],
      [
        0.0749,
        0.0772,
        0.0748,
        0.0763
      ],
      [
        0.0764,
        0.0776,
        0.0751,
        0.0756
      ],
      [
        0.0756,
        0.0761,
        0.0753,
        0.0755
      ],
      [
        0.0755,
        0.0761,
        0.0754,
        0.076
      ],
      [
        0.076,
        0.0793,
        0.0756,
        0.0791
      ],
      [
        0.0791,
        0.0796,
        0.0785,
        0.0786
      ]
    ]
  }
}
